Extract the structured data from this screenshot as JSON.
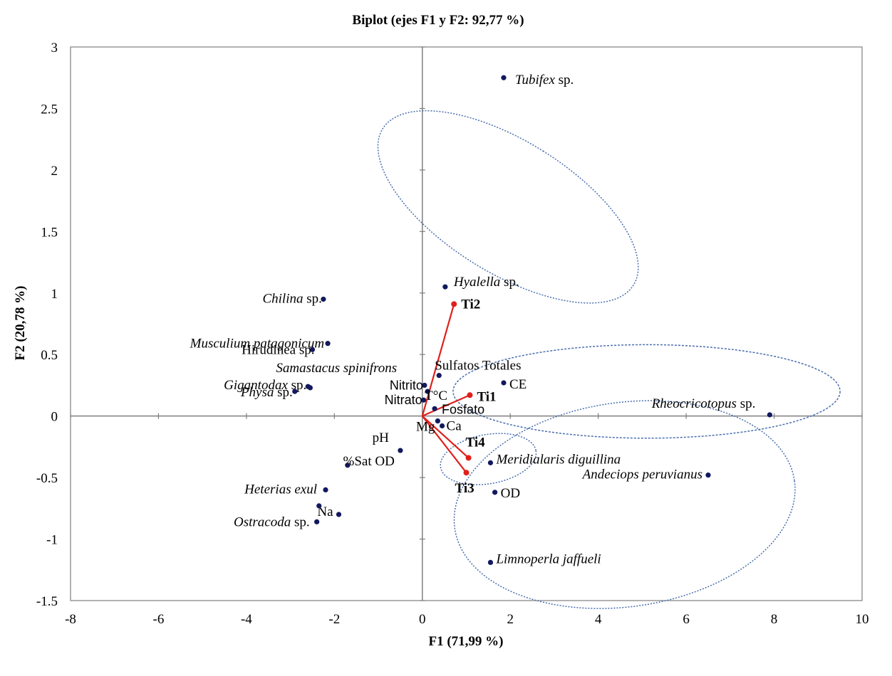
{
  "chart_data": {
    "type": "scatter",
    "title": "Biplot (ejes F1 y F2: 92,77 %)",
    "xlabel": "F1 (71,99 %)",
    "ylabel": "F2 (20,78 %)",
    "xlim": [
      -8,
      10
    ],
    "ylim": [
      -1.5,
      3
    ],
    "xticks": [
      "-8",
      "-6",
      "-4",
      "-2",
      "0",
      "2",
      "4",
      "6",
      "8",
      "10"
    ],
    "yticks": [
      "-1.5",
      "-1",
      "-0.5",
      "0",
      "0.5",
      "1",
      "1.5",
      "2",
      "2.5",
      "3"
    ],
    "grid": false,
    "colors": {
      "points": "#12195e",
      "vectors": "#e0201c",
      "ellipses": "#4a6fae",
      "axes": "#7f7f7f"
    },
    "species": [
      {
        "label": "Tubifex",
        "suffix": " sp.",
        "italic": true,
        "x": 1.85,
        "y": 2.75
      },
      {
        "label": "Hyalella",
        "suffix": " sp.",
        "italic": true,
        "x": 0.52,
        "y": 1.05
      },
      {
        "label": "Chilina",
        "suffix": " sp.",
        "italic": true,
        "x": -2.25,
        "y": 0.95
      },
      {
        "label": "Musculium patagonicum",
        "suffix": "",
        "italic": true,
        "x": -2.15,
        "y": 0.59
      },
      {
        "label": "Samastacus spinifrons",
        "suffix": "",
        "italic": true,
        "x": -2.55,
        "y": 0.23
      },
      {
        "label": "Gigantodax",
        "suffix": " sp.",
        "italic": true,
        "x": -2.6,
        "y": 0.24
      },
      {
        "label": "Physa",
        "suffix": " sp.",
        "italic": true,
        "x": -2.9,
        "y": 0.2
      },
      {
        "label": "Rheocricotopus",
        "suffix": " sp.",
        "italic": true,
        "x": 7.9,
        "y": 0.01
      },
      {
        "label": "Meridialaris diguillina",
        "suffix": "",
        "italic": true,
        "x": 1.55,
        "y": -0.38
      },
      {
        "label": "Andeciops peruvianus",
        "suffix": "",
        "italic": true,
        "x": 6.5,
        "y": -0.48
      },
      {
        "label": "Heterias exul",
        "suffix": "",
        "italic": true,
        "x": -2.2,
        "y": -0.6
      },
      {
        "label": "Ostracoda",
        "suffix": " sp.",
        "italic": true,
        "x": -2.4,
        "y": -0.86
      },
      {
        "label": "Limnoperla jaffueli",
        "suffix": "",
        "italic": true,
        "x": 1.55,
        "y": -1.19
      }
    ],
    "variables": [
      {
        "label": "Hirudinea sp.",
        "x": -2.5,
        "y": 0.54
      },
      {
        "label": "Sulfatos Totales",
        "x": 0.38,
        "y": 0.33
      },
      {
        "label": "CE",
        "x": 1.85,
        "y": 0.27
      },
      {
        "label": "Nitrito",
        "x": 0.05,
        "y": 0.25
      },
      {
        "label": "T°C",
        "x": 0.12,
        "y": 0.2
      },
      {
        "label": "Nitrato",
        "x": 0.03,
        "y": 0.13
      },
      {
        "label": "Fosfato",
        "x": 0.28,
        "y": 0.06
      },
      {
        "label": "Mg",
        "x": 0.35,
        "y": -0.04
      },
      {
        "label": "Ca",
        "x": 0.45,
        "y": -0.08
      },
      {
        "label": "pH",
        "x": -0.5,
        "y": -0.28
      },
      {
        "label": "%Sat OD",
        "x": -1.7,
        "y": -0.4
      },
      {
        "label": "OD",
        "x": 1.65,
        "y": -0.62
      },
      {
        "label": "Na",
        "x": -1.9,
        "y": -0.8
      },
      {
        "label": "",
        "x": -2.35,
        "y": -0.73
      }
    ],
    "sites": [
      {
        "label": "Ti2",
        "x": 0.72,
        "y": 0.91
      },
      {
        "label": "Ti1",
        "x": 1.08,
        "y": 0.17
      },
      {
        "label": "Ti4",
        "x": 1.05,
        "y": -0.34
      },
      {
        "label": "Ti3",
        "x": 1.0,
        "y": -0.46
      }
    ],
    "ellipses": [
      {
        "cx": 1.95,
        "cy": 1.7,
        "rx": 1.5,
        "ry": 1.2,
        "rot": -58,
        "style": "dotted"
      },
      {
        "cx": 5.1,
        "cy": 0.2,
        "rx": 4.4,
        "ry": 0.38,
        "rot": 0,
        "style": "dashed"
      },
      {
        "cx": 4.6,
        "cy": -0.72,
        "rx": 3.9,
        "ry": 0.83,
        "rot": -8,
        "style": "dotted"
      },
      {
        "cx": 1.5,
        "cy": -0.35,
        "rx": 1.1,
        "ry": 0.2,
        "rot": -10,
        "style": "dotted"
      }
    ]
  }
}
